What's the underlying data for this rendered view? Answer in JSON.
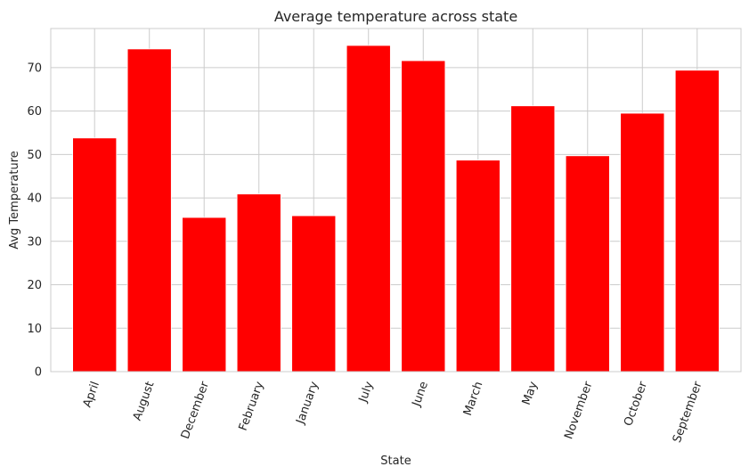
{
  "chart_data": {
    "type": "bar",
    "title": "Average temperature across state",
    "xlabel": "State",
    "ylabel": "Avg Temperature",
    "categories": [
      "April",
      "August",
      "December",
      "February",
      "January",
      "July",
      "June",
      "March",
      "May",
      "November",
      "October",
      "September"
    ],
    "values": [
      53.8,
      74.3,
      35.5,
      40.9,
      35.9,
      75.1,
      71.6,
      48.7,
      61.2,
      49.7,
      59.5,
      69.4
    ],
    "ylim": [
      0,
      79
    ],
    "yticks": [
      0,
      10,
      20,
      30,
      40,
      50,
      60,
      70
    ],
    "grid": true,
    "bar_color": "#ff0000",
    "grid_color": "#cccccc",
    "spine_color": "#cccccc",
    "text_color": "#262626"
  }
}
